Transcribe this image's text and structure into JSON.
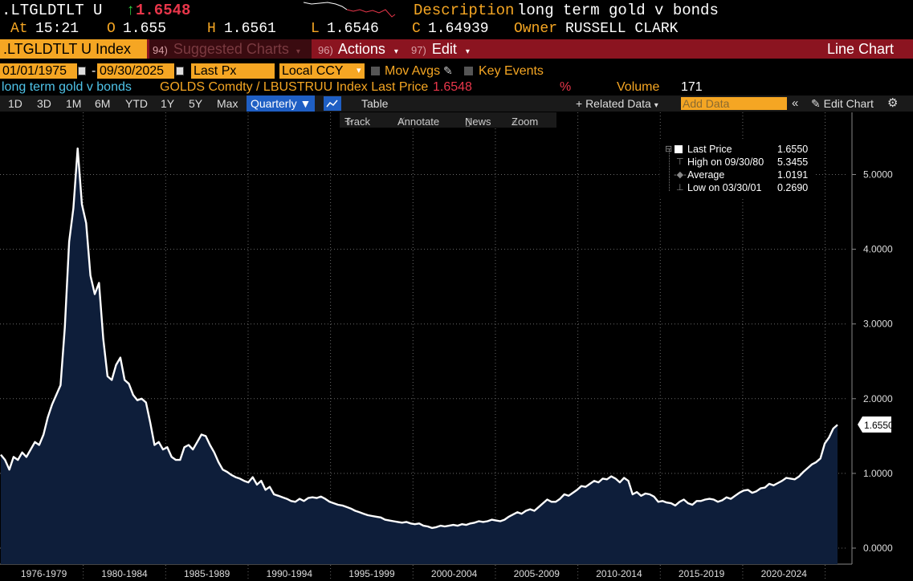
{
  "header": {
    "ticker": ".LTGLDTLT U",
    "last_arrow": "↑",
    "last_price": "1.6548",
    "description_label": "Description",
    "description": "long term gold v bonds",
    "at_label": "At",
    "time": "15:21",
    "open_label": "O",
    "open": "1.655",
    "high_label": "H",
    "high": "1.6561",
    "low_label": "L",
    "low": "1.6546",
    "close_label": "C",
    "close": "1.64939",
    "owner_label": "Owner",
    "owner": "RUSSELL CLARK"
  },
  "toolbar": {
    "security": ".LTGLDTLT U Index",
    "suggested_num": "94)",
    "suggested": "Suggested Charts",
    "actions_num": "96)",
    "actions": "Actions",
    "edit_num": "97)",
    "edit": "Edit",
    "chart_type": "Line Chart"
  },
  "settings": {
    "start_date": "01/01/1975",
    "end_date": "09/30/2025",
    "dash": "-",
    "field": "Last Px",
    "currency": "Local CCY",
    "mov_avgs": "Mov Avgs",
    "key_events": "Key Events"
  },
  "series_info": {
    "name": "long term gold v bonds",
    "formula": "GOLDS Comdty / LBUSTRUU Index Last Price",
    "last": "1.6548",
    "pct": "%",
    "volume_label": "Volume",
    "volume": "171"
  },
  "periods": [
    "1D",
    "3D",
    "1M",
    "6M",
    "YTD",
    "1Y",
    "5Y",
    "Max"
  ],
  "frequency": "Quarterly",
  "table_label": "Table",
  "related_data": "+ Related Data",
  "add_data_placeholder": "Add Data",
  "edit_chart": "Edit Chart",
  "chart_tools": {
    "track": "Track",
    "annotate": "Annotate",
    "news": "News",
    "zoom": "Zoom"
  },
  "legend": {
    "last_price_label": "Last Price",
    "last_price_value": "1.6550",
    "high_label": "High on 09/30/80",
    "high_value": "5.3455",
    "average_label": "Average",
    "average_value": "1.0191",
    "low_label": "Low on 03/30/01",
    "low_value": "0.2690"
  },
  "last_value_tag": "1.6550",
  "colors": {
    "accent_orange": "#f5a623",
    "toolbar_red": "#8b1420",
    "price_red": "#e8364a",
    "area_fill": "#0e1e3a",
    "line": "#ffffff"
  },
  "chart_data": {
    "type": "area",
    "frequency": "quarterly",
    "ylim": [
      -0.05,
      5.85
    ],
    "y_ticks": [
      "0.0000",
      "1.0000",
      "2.0000",
      "3.0000",
      "4.0000",
      "5.0000"
    ],
    "x_tick_labels": [
      "1976-1979",
      "1980-1984",
      "1985-1989",
      "1990-1994",
      "1995-1999",
      "2000-2004",
      "2005-2009",
      "2010-2014",
      "2015-2019",
      "2020-2024"
    ],
    "x_start_year": 1975,
    "x_end_year": 2025.75,
    "grid": true,
    "series": [
      {
        "values": [
          1.25,
          1.18,
          1.05,
          1.22,
          1.18,
          1.28,
          1.22,
          1.32,
          1.42,
          1.38,
          1.52,
          1.75,
          1.92,
          2.05,
          2.18,
          2.95,
          4.1,
          4.55,
          5.35,
          4.6,
          4.35,
          3.65,
          3.4,
          3.55,
          2.8,
          2.3,
          2.25,
          2.45,
          2.55,
          2.25,
          2.2,
          2.05,
          1.98,
          2.0,
          1.95,
          1.68,
          1.38,
          1.42,
          1.32,
          1.35,
          1.22,
          1.18,
          1.18,
          1.35,
          1.38,
          1.32,
          1.42,
          1.52,
          1.5,
          1.38,
          1.28,
          1.15,
          1.05,
          1.02,
          0.98,
          0.95,
          0.93,
          0.9,
          0.88,
          0.95,
          0.85,
          0.9,
          0.78,
          0.82,
          0.72,
          0.7,
          0.68,
          0.66,
          0.63,
          0.62,
          0.66,
          0.63,
          0.67,
          0.68,
          0.67,
          0.69,
          0.66,
          0.62,
          0.6,
          0.58,
          0.57,
          0.55,
          0.53,
          0.5,
          0.48,
          0.46,
          0.44,
          0.43,
          0.42,
          0.41,
          0.38,
          0.37,
          0.36,
          0.35,
          0.34,
          0.35,
          0.33,
          0.32,
          0.33,
          0.3,
          0.29,
          0.27,
          0.28,
          0.3,
          0.29,
          0.3,
          0.31,
          0.3,
          0.32,
          0.31,
          0.33,
          0.34,
          0.36,
          0.35,
          0.36,
          0.38,
          0.37,
          0.36,
          0.38,
          0.42,
          0.45,
          0.48,
          0.46,
          0.5,
          0.52,
          0.5,
          0.55,
          0.6,
          0.65,
          0.62,
          0.62,
          0.66,
          0.72,
          0.7,
          0.74,
          0.78,
          0.83,
          0.82,
          0.86,
          0.9,
          0.88,
          0.93,
          0.92,
          0.96,
          0.93,
          0.88,
          0.94,
          0.9,
          0.72,
          0.75,
          0.7,
          0.73,
          0.72,
          0.69,
          0.62,
          0.63,
          0.61,
          0.6,
          0.57,
          0.62,
          0.65,
          0.6,
          0.58,
          0.63,
          0.63,
          0.65,
          0.66,
          0.65,
          0.62,
          0.64,
          0.68,
          0.66,
          0.7,
          0.74,
          0.77,
          0.78,
          0.74,
          0.76,
          0.8,
          0.81,
          0.86,
          0.84,
          0.87,
          0.9,
          0.94,
          0.93,
          0.92,
          0.96,
          1.02,
          1.07,
          1.12,
          1.15,
          1.2,
          1.4,
          1.48,
          1.6,
          1.65
        ]
      }
    ]
  }
}
